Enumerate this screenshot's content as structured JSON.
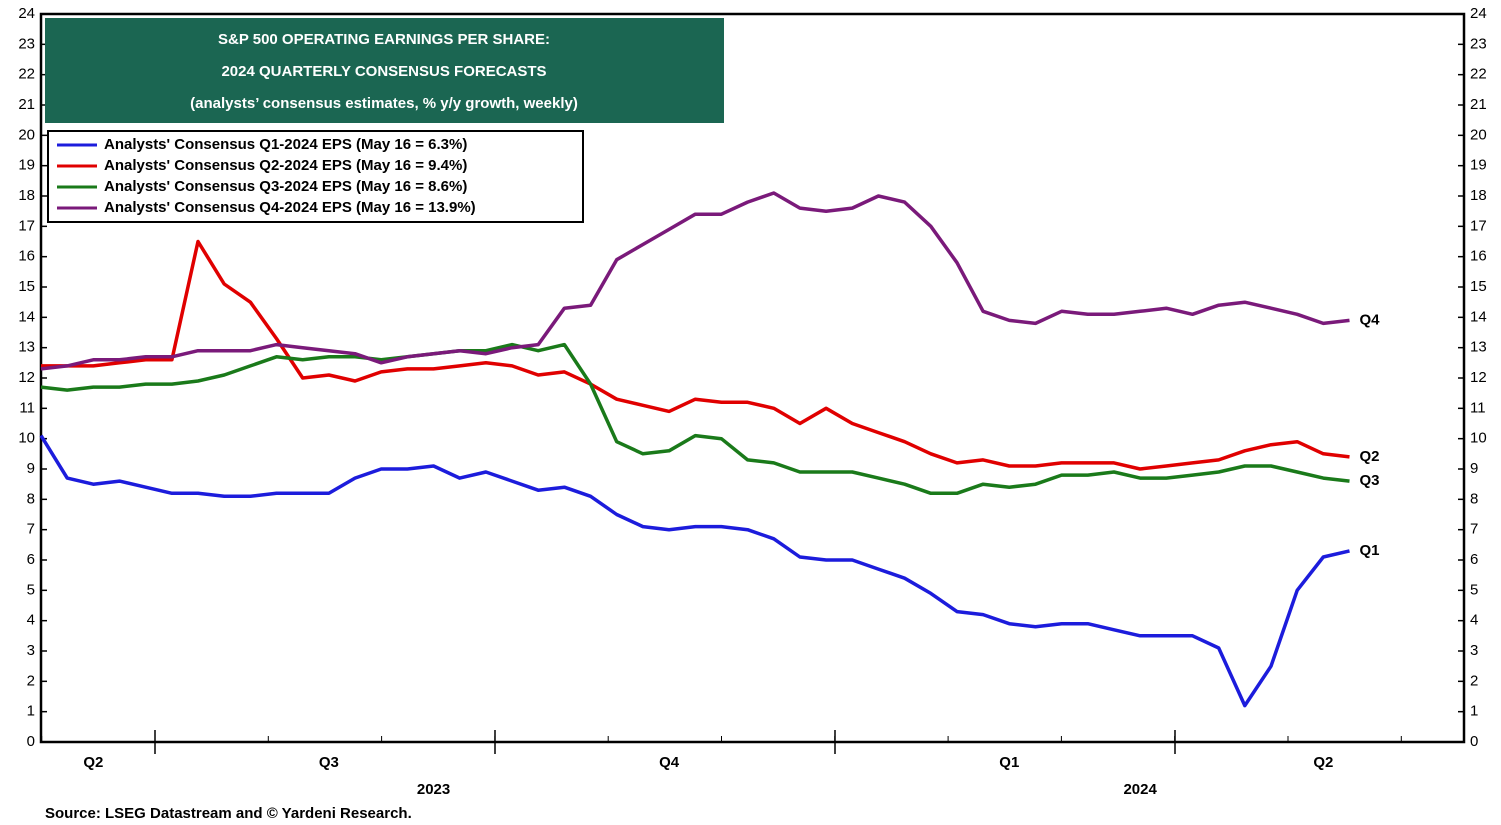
{
  "chart_data": {
    "type": "line",
    "title": [
      "S&P 500 OPERATING EARNINGS PER SHARE:",
      "2024 QUARTERLY CONSENSUS FORECASTS",
      "(analysts’ consensus estimates, % y/y growth, weekly)"
    ],
    "source": "Source: LSEG Datastream and © Yardeni Research.",
    "categories": [
      null,
      null,
      "Q2",
      null,
      null,
      null,
      null,
      null,
      null,
      null,
      null,
      "Q3",
      null,
      null,
      null,
      null,
      null,
      null,
      null,
      null,
      null,
      null,
      null,
      null,
      "Q4",
      null,
      null,
      null,
      null,
      null,
      null,
      null,
      null,
      null,
      null,
      null,
      null,
      "Q1",
      null,
      null,
      null,
      null,
      null,
      null,
      null,
      null,
      null,
      null,
      null,
      "Q2",
      null
    ],
    "year_labels": [
      null,
      null,
      null,
      null,
      null,
      null,
      null,
      null,
      null,
      null,
      null,
      null,
      null,
      null,
      null,
      "2023",
      null,
      null,
      null,
      null,
      null,
      null,
      null,
      null,
      null,
      null,
      null,
      null,
      null,
      null,
      null,
      null,
      null,
      null,
      null,
      null,
      null,
      null,
      null,
      null,
      null,
      null,
      "2024",
      null,
      null,
      null,
      null,
      null,
      null,
      null,
      null
    ],
    "series": [
      {
        "name": "Analysts' Consensus Q1-2024 EPS (May 16 = 6.3%)",
        "end_label": "Q1",
        "color": "#1c1cdc",
        "values": [
          10.1,
          8.7,
          8.5,
          8.6,
          8.4,
          8.2,
          8.2,
          8.1,
          8.1,
          8.2,
          8.2,
          8.2,
          8.7,
          9.0,
          9.0,
          9.1,
          8.7,
          8.9,
          8.6,
          8.3,
          8.4,
          8.1,
          7.5,
          7.1,
          7.0,
          7.1,
          7.1,
          7.0,
          6.7,
          6.1,
          6.0,
          6.0,
          5.7,
          5.4,
          4.9,
          4.3,
          4.2,
          3.9,
          3.8,
          3.9,
          3.9,
          3.7,
          3.5,
          3.5,
          3.5,
          3.1,
          1.2,
          2.5,
          5.0,
          6.1,
          6.3
        ]
      },
      {
        "name": "Analysts' Consensus Q2-2024 EPS (May 16 = 9.4%)",
        "end_label": "Q2",
        "color": "#e00000",
        "values": [
          12.4,
          12.4,
          12.4,
          12.5,
          12.6,
          12.6,
          16.5,
          15.1,
          14.5,
          13.3,
          12.0,
          12.1,
          11.9,
          12.2,
          12.3,
          12.3,
          12.4,
          12.5,
          12.4,
          12.1,
          12.2,
          11.8,
          11.3,
          11.1,
          10.9,
          11.3,
          11.2,
          11.2,
          11.0,
          10.5,
          11.0,
          10.5,
          10.2,
          9.9,
          9.5,
          9.2,
          9.3,
          9.1,
          9.1,
          9.2,
          9.2,
          9.2,
          9.0,
          9.1,
          9.2,
          9.3,
          9.6,
          9.8,
          9.9,
          9.5,
          9.4
        ]
      },
      {
        "name": "Analysts' Consensus Q3-2024 EPS (May 16 = 8.6%)",
        "end_label": "Q3",
        "color": "#1a7a1a",
        "values": [
          11.7,
          11.6,
          11.7,
          11.7,
          11.8,
          11.8,
          11.9,
          12.1,
          12.4,
          12.7,
          12.6,
          12.7,
          12.7,
          12.6,
          12.7,
          12.8,
          12.9,
          12.9,
          13.1,
          12.9,
          13.1,
          11.8,
          9.9,
          9.5,
          9.6,
          10.1,
          10.0,
          9.3,
          9.2,
          8.9,
          8.9,
          8.9,
          8.7,
          8.5,
          8.2,
          8.2,
          8.5,
          8.4,
          8.5,
          8.8,
          8.8,
          8.9,
          8.7,
          8.7,
          8.8,
          8.9,
          9.1,
          9.1,
          8.9,
          8.7,
          8.6
        ]
      },
      {
        "name": "Analysts' Consensus Q4-2024 EPS (May 16 = 13.9%)",
        "end_label": "Q4",
        "color": "#7a1a7a",
        "values": [
          12.3,
          12.4,
          12.6,
          12.6,
          12.7,
          12.7,
          12.9,
          12.9,
          12.9,
          13.1,
          13.0,
          12.9,
          12.8,
          12.5,
          12.7,
          12.8,
          12.9,
          12.8,
          13.0,
          13.1,
          14.3,
          14.4,
          15.9,
          16.4,
          16.9,
          17.4,
          17.4,
          17.8,
          18.1,
          17.6,
          17.5,
          17.6,
          18.0,
          17.8,
          17.0,
          15.8,
          14.2,
          13.9,
          13.8,
          14.2,
          14.1,
          14.1,
          14.2,
          14.3,
          14.1,
          14.4,
          14.5,
          14.3,
          14.1,
          13.8,
          13.9
        ]
      }
    ],
    "ylim": [
      0,
      24
    ],
    "yticks": [
      0,
      1,
      2,
      3,
      4,
      5,
      6,
      7,
      8,
      9,
      10,
      11,
      12,
      13,
      14,
      15,
      16,
      17,
      18,
      19,
      20,
      21,
      22,
      23,
      24
    ],
    "title_color": "#1b6652"
  }
}
